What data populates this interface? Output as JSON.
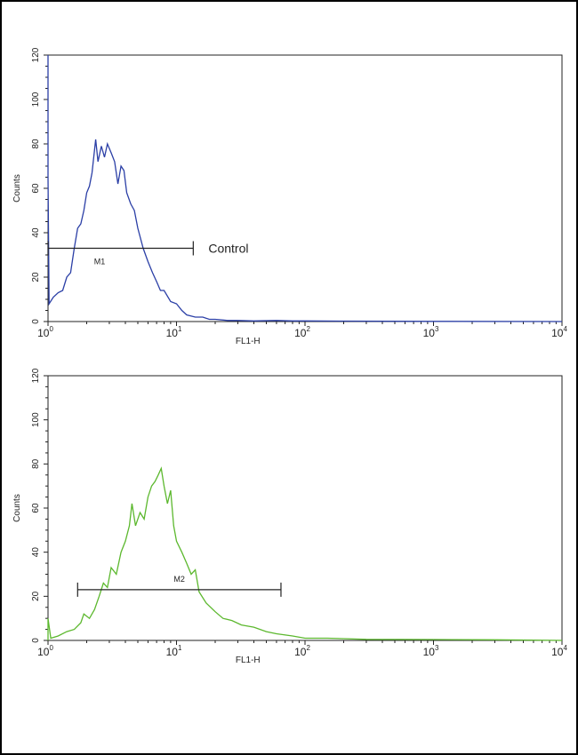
{
  "chart_data": [
    {
      "type": "line",
      "subtype": "histogram",
      "xlabel": "FL1-H",
      "ylabel": "Counts",
      "xscale": "log",
      "xlim": [
        1,
        10000
      ],
      "ylim": [
        0,
        120
      ],
      "xticks": [
        "10^0",
        "10^1",
        "10^2",
        "10^3",
        "10^4"
      ],
      "yticks": [
        0,
        20,
        40,
        60,
        80,
        100,
        120
      ],
      "grid": false,
      "color": "#2b3fa6",
      "series": [
        {
          "x": [
            1.0,
            1.0,
            1.02,
            1.1,
            1.2,
            1.3,
            1.4,
            1.5,
            1.6,
            1.7,
            1.8,
            1.9,
            2.0,
            2.1,
            2.2,
            2.35,
            2.45,
            2.6,
            2.75,
            2.9,
            3.1,
            3.3,
            3.5,
            3.7,
            3.9,
            4.1,
            4.4,
            4.7,
            5.0,
            5.5,
            6.0,
            6.5,
            7.0,
            7.5,
            8.0,
            9.0,
            10,
            11,
            12,
            14,
            16,
            18,
            20,
            25,
            30,
            40,
            60,
            80,
            100,
            200,
            1000,
            10000
          ],
          "y": [
            120,
            65,
            8,
            11,
            13,
            14,
            20,
            22,
            33,
            42,
            44,
            50,
            58,
            61,
            67,
            82,
            72,
            79,
            74,
            80,
            76,
            72,
            62,
            70,
            68,
            58,
            53,
            50,
            42,
            33,
            27,
            22,
            18,
            14,
            14,
            9,
            8,
            5,
            3,
            2,
            2,
            1,
            1,
            0.5,
            0.5,
            0.3,
            0.5,
            0.3,
            0.3,
            0.2,
            0.1,
            0
          ]
        }
      ],
      "markers": [
        {
          "label": "M1",
          "x1": 1.0,
          "x2": 13.5,
          "y": 33
        }
      ],
      "annotation": "Control"
    },
    {
      "type": "line",
      "subtype": "histogram",
      "xlabel": "FL1-H",
      "ylabel": "Counts",
      "xscale": "log",
      "xlim": [
        1,
        10000
      ],
      "ylim": [
        0,
        120
      ],
      "xticks": [
        "10^0",
        "10^1",
        "10^2",
        "10^3",
        "10^4"
      ],
      "yticks": [
        0,
        20,
        40,
        60,
        80,
        100,
        120
      ],
      "grid": false,
      "color": "#5cb82e",
      "series": [
        {
          "x": [
            1.0,
            1.0,
            1.05,
            1.2,
            1.4,
            1.6,
            1.8,
            1.9,
            2.1,
            2.3,
            2.5,
            2.7,
            2.9,
            3.1,
            3.4,
            3.7,
            4.0,
            4.3,
            4.5,
            4.8,
            5.2,
            5.6,
            6.0,
            6.4,
            6.8,
            7.2,
            7.6,
            8.0,
            8.5,
            9.0,
            9.5,
            10,
            11,
            12,
            13,
            14,
            15,
            17,
            20,
            23,
            27,
            32,
            40,
            50,
            60,
            80,
            100,
            150,
            300,
            1000,
            3000,
            10000
          ],
          "y": [
            0,
            10,
            1,
            2,
            4,
            5,
            8,
            12,
            10,
            14,
            20,
            26,
            24,
            33,
            30,
            40,
            45,
            52,
            62,
            52,
            58,
            55,
            65,
            70,
            72,
            75,
            78,
            70,
            62,
            68,
            52,
            45,
            40,
            35,
            30,
            32,
            22,
            17,
            13,
            10,
            9,
            7,
            6,
            4,
            3,
            2,
            1,
            1,
            0.5,
            0.4,
            0.3,
            0
          ]
        }
      ],
      "markers": [
        {
          "label": "M2",
          "x1": 1.7,
          "x2": 65,
          "y": 23
        }
      ]
    }
  ]
}
